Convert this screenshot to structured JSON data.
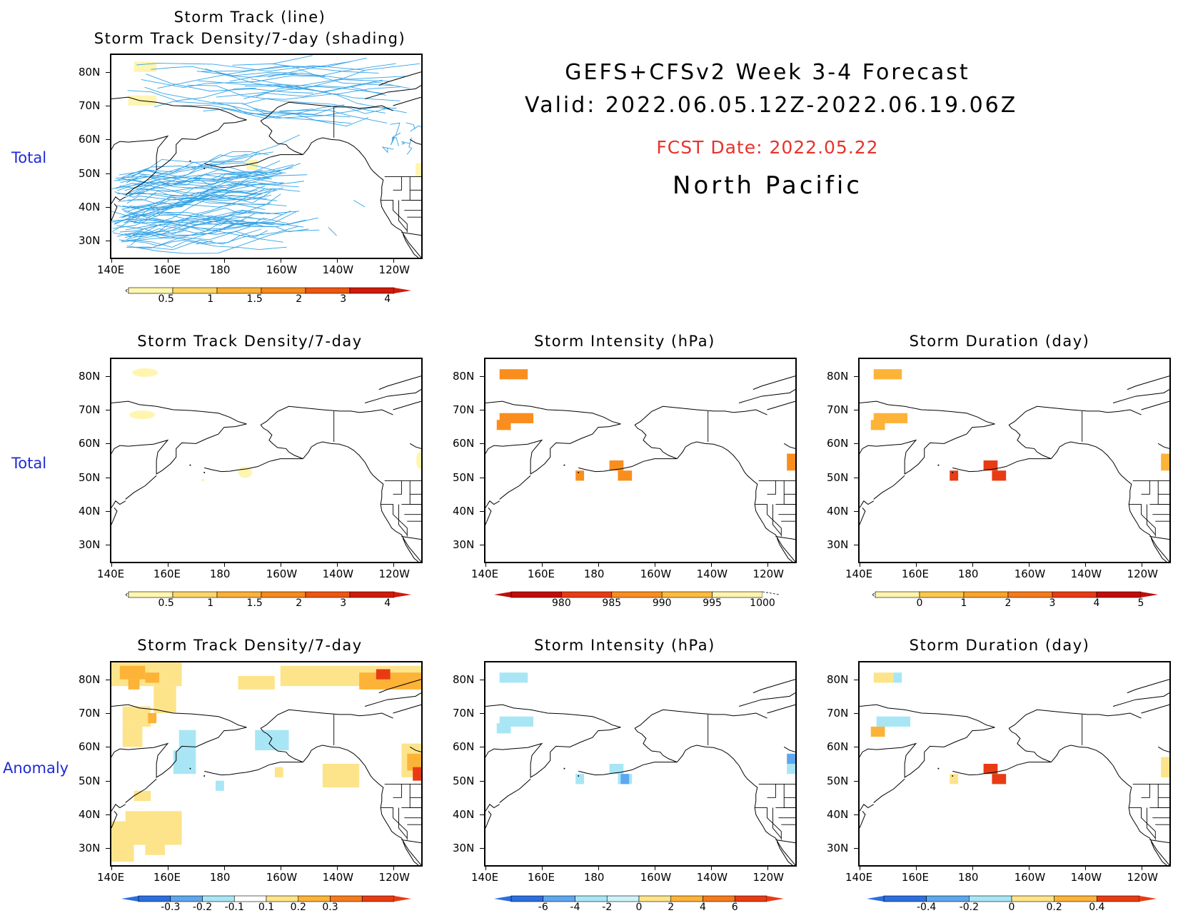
{
  "header": {
    "title_line1": "GEFS+CFSv2 Week 3-4 Forecast",
    "title_line2": "Valid: 2022.06.05.12Z-2022.06.19.06Z",
    "fcst_date": "FCST Date: 2022.05.22",
    "region": "North Pacific",
    "fcst_color": "#e8322b"
  },
  "row_labels": {
    "total1": "Total",
    "total2": "Total",
    "anomaly": "Anomaly"
  },
  "axes": {
    "lat": [
      "80N",
      "70N",
      "60N",
      "50N",
      "40N",
      "30N"
    ],
    "lon": [
      "140E",
      "160E",
      "180",
      "160W",
      "140W",
      "120W"
    ]
  },
  "panels": {
    "top": {
      "title1": "Storm Track (line)",
      "title2": "Storm Track Density/7-day (shading)"
    },
    "density_total": {
      "title": "Storm Track Density/7-day"
    },
    "intensity_total": {
      "title": "Storm Intensity (hPa)"
    },
    "duration_total": {
      "title": "Storm Duration (day)"
    },
    "density_anom": {
      "title": "Storm Track Density/7-day"
    },
    "intensity_anom": {
      "title": "Storm Intensity (hPa)"
    },
    "duration_anom": {
      "title": "Storm Duration (day)"
    }
  },
  "colorbars": {
    "density": {
      "labels": [
        "0.5",
        "1",
        "1.5",
        "2",
        "3",
        "4"
      ],
      "colors": [
        "#fff7b0",
        "#fcd66a",
        "#f9b13a",
        "#f58a1e",
        "#ee5510",
        "#cf1a0c"
      ]
    },
    "intensity": {
      "labels": [
        "980",
        "985",
        "990",
        "995",
        "1000"
      ],
      "colors": [
        "#c10c0c",
        "#e83b14",
        "#f98e1e",
        "#fcbb3c",
        "#fff3b0"
      ]
    },
    "duration": {
      "labels": [
        "0",
        "1",
        "2",
        "3",
        "4",
        "5"
      ],
      "colors": [
        "#fff3b0",
        "#fcc84c",
        "#f9a42a",
        "#f57a1c",
        "#e83b14",
        "#c10c0c"
      ]
    },
    "density_anom": {
      "labels": [
        "-0.3",
        "-0.2",
        "-0.1",
        "0.1",
        "0.2",
        "0.3"
      ],
      "colors": [
        "#2b6fe0",
        "#5da7ee",
        "#a8e6f5",
        "#ffffff",
        "#fde48a",
        "#fcb338",
        "#f57a1c",
        "#e83b14"
      ]
    },
    "intensity_anom": {
      "labels": [
        "-6",
        "-4",
        "-2",
        "0",
        "2",
        "4",
        "6"
      ],
      "colors": [
        "#2b6fe0",
        "#5da7ee",
        "#a8e6f5",
        "#cdf2fa",
        "#fde48a",
        "#fcb338",
        "#f57a1c",
        "#e83b14"
      ]
    },
    "duration_anom": {
      "labels": [
        "-0.4",
        "-0.2",
        "0",
        "0.2",
        "0.4"
      ],
      "colors": [
        "#2b6fe0",
        "#5da7ee",
        "#a8e6f5",
        "#fde48a",
        "#fcb338",
        "#e83b14"
      ]
    }
  },
  "colors": {
    "track_line": "#33a3e6",
    "coast": "#000000",
    "label_blue": "#1f2bd6"
  }
}
